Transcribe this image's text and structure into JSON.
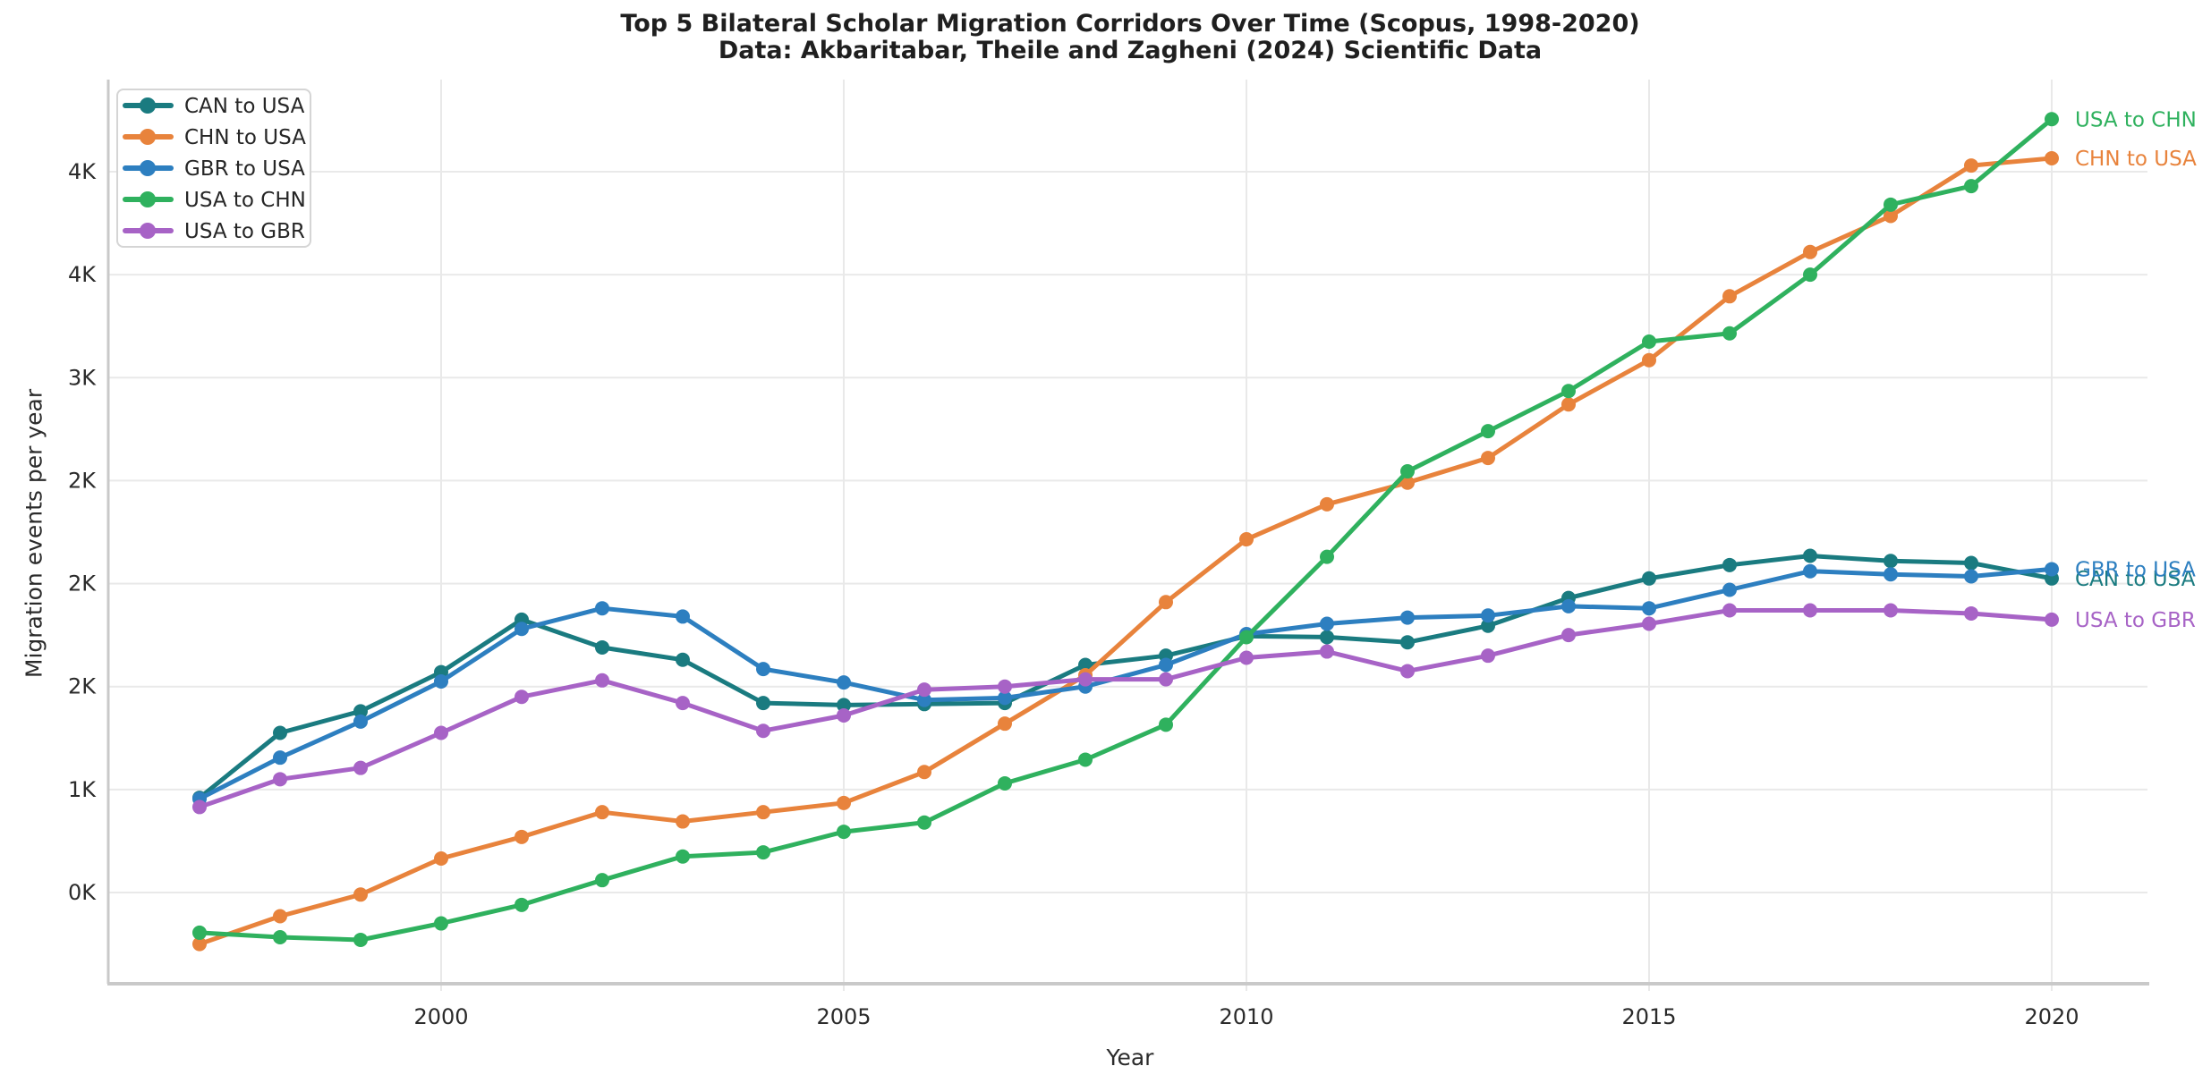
{
  "title": {
    "line1": "Top 5 Bilateral Scholar Migration Corridors Over Time (Scopus, 1998-2020)",
    "line2": "Data: Akbaritabar, Theile and Zagheni (2024) Scientific Data"
  },
  "axes": {
    "xlabel": "Year",
    "ylabel": "Migration events per year",
    "x_ticks": [
      {
        "value": 2000,
        "label": "2000"
      },
      {
        "value": 2005,
        "label": "2005"
      },
      {
        "value": 2010,
        "label": "2010"
      },
      {
        "value": 2015,
        "label": "2015"
      },
      {
        "value": 2020,
        "label": "2020"
      }
    ],
    "y_ticks": [
      {
        "value": 500,
        "label": "0K"
      },
      {
        "value": 1000,
        "label": "1K"
      },
      {
        "value": 1500,
        "label": "2K"
      },
      {
        "value": 2000,
        "label": "2K"
      },
      {
        "value": 2500,
        "label": "2K"
      },
      {
        "value": 3000,
        "label": "3K"
      },
      {
        "value": 3500,
        "label": "4K"
      },
      {
        "value": 4000,
        "label": "4K"
      }
    ]
  },
  "legend": {
    "position": "upper-left",
    "items": [
      "CAN to USA",
      "CHN to USA",
      "GBR to USA",
      "USA to CHN",
      "USA to GBR"
    ]
  },
  "colors": {
    "grid": "#e9e9e9",
    "spine": "#c9c9c9",
    "tick_text": "#2b2b2b",
    "title_text": "#1f1f1f",
    "legend_border": "#d5d5d5"
  },
  "chart_data": {
    "type": "line",
    "title": "Top 5 Bilateral Scholar Migration Corridors Over Time (Scopus, 1998-2020)",
    "subtitle": "Data: Akbaritabar, Theile and Zagheni (2024) Scientific Data",
    "xlabel": "Year",
    "ylabel": "Migration events per year",
    "grid": true,
    "legend_position": "upper left",
    "xlim": [
      1995.9,
      2021.2
    ],
    "ylim": [
      57,
      4448
    ],
    "x": [
      1997,
      1998,
      1999,
      2000,
      2001,
      2002,
      2003,
      2004,
      2005,
      2006,
      2007,
      2008,
      2009,
      2010,
      2011,
      2012,
      2013,
      2014,
      2015,
      2016,
      2017,
      2018,
      2019,
      2020
    ],
    "series": [
      {
        "name": "CAN to USA",
        "color": "#1a7b80",
        "values": [
          960,
          1275,
          1380,
          1570,
          1825,
          1690,
          1630,
          1420,
          1410,
          1415,
          1420,
          1605,
          1650,
          1745,
          1740,
          1715,
          1795,
          1930,
          2025,
          2090,
          2135,
          2110,
          2100,
          2025
        ]
      },
      {
        "name": "CHN to USA",
        "color": "#e8833c",
        "values": [
          250,
          385,
          490,
          665,
          770,
          890,
          845,
          890,
          935,
          1085,
          1320,
          1555,
          1910,
          2215,
          2385,
          2490,
          2610,
          2870,
          3085,
          3395,
          3610,
          3785,
          4030,
          4065
        ]
      },
      {
        "name": "GBR to USA",
        "color": "#2d7fc0",
        "values": [
          955,
          1155,
          1330,
          1525,
          1780,
          1880,
          1840,
          1585,
          1520,
          1435,
          1445,
          1500,
          1605,
          1755,
          1805,
          1835,
          1845,
          1890,
          1880,
          1970,
          2060,
          2045,
          2035,
          2070
        ]
      },
      {
        "name": "USA to CHN",
        "color": "#2fb15e",
        "values": [
          305,
          283,
          270,
          350,
          440,
          560,
          675,
          695,
          795,
          840,
          1030,
          1145,
          1315,
          1740,
          2130,
          2545,
          2740,
          2935,
          3175,
          3215,
          3500,
          3840,
          3930,
          4255
        ]
      },
      {
        "name": "USA to GBR",
        "color": "#a763c6",
        "values": [
          915,
          1050,
          1105,
          1275,
          1450,
          1530,
          1420,
          1285,
          1360,
          1485,
          1500,
          1535,
          1535,
          1640,
          1670,
          1575,
          1650,
          1750,
          1805,
          1870,
          1870,
          1870,
          1855,
          1825
        ]
      }
    ]
  }
}
